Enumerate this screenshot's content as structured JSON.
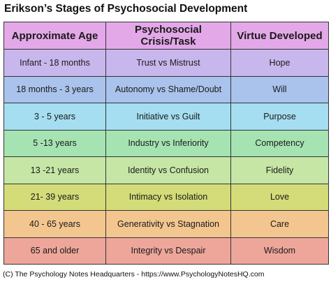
{
  "header": {
    "title": "Erikson’s Stages of Psychosocial Development"
  },
  "table": {
    "columns": [
      "Approximate Age",
      "Psychosocial Crisis/Task",
      "Virtue Developed"
    ],
    "rows": [
      [
        "Infant - 18 months",
        "Trust vs Mistrust",
        "Hope"
      ],
      [
        "18 months - 3 years",
        "Autonomy vs Shame/Doubt",
        "Will"
      ],
      [
        "3 - 5 years",
        "Initiative vs Guilt",
        "Purpose"
      ],
      [
        "5 -13 years",
        "Industry vs Inferiority",
        "Competency"
      ],
      [
        "13 -21 years",
        "Identity vs Confusion",
        "Fidelity"
      ],
      [
        "21- 39 years",
        "Intimacy vs Isolation",
        "Love"
      ],
      [
        "40 - 65 years",
        "Generativity vs Stagnation",
        "Care"
      ],
      [
        "65 and older",
        "Integrity vs Despair",
        "Wisdom"
      ]
    ]
  },
  "footer": "(C) The Psychology Notes Headquarters - https://www.PsychologyNotesHQ.com"
}
